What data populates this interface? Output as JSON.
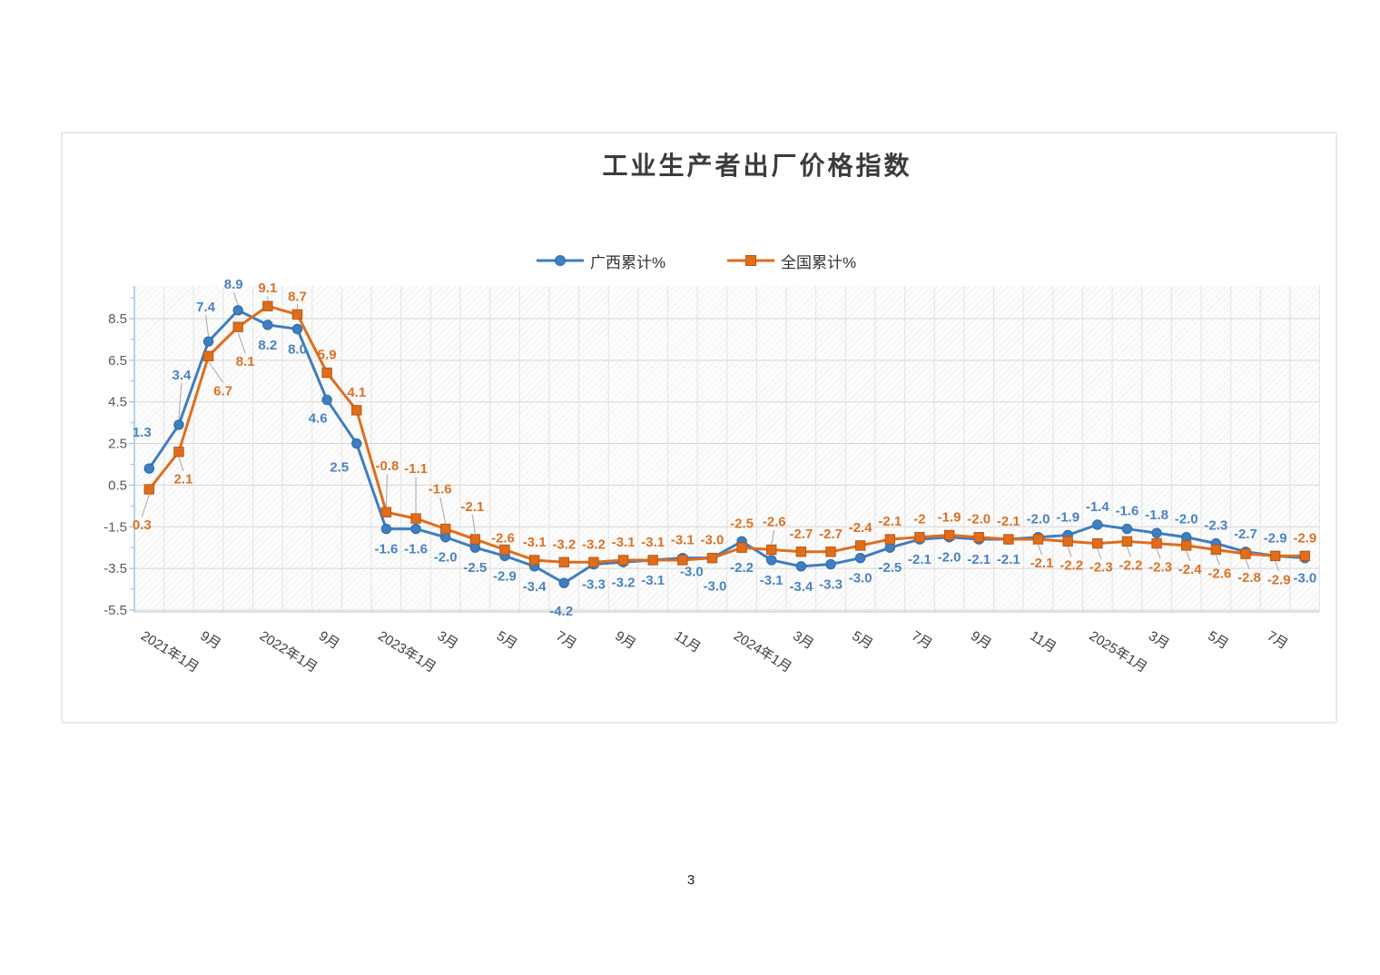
{
  "page": {
    "number": "3"
  },
  "chart": {
    "title": "工业生产者出厂价格指数",
    "background": "#ffffff",
    "border_color": "#e9e9e9",
    "axis_color": "#9dc3e6",
    "gridline_color": "#d7d7d7",
    "minor_gridline_color": "#e3e3e3",
    "leader_color": "#a6a6a6",
    "tick_label_color": "#595959"
  },
  "chart_data": {
    "type": "line",
    "title": "工业生产者出厂价格指数",
    "legend_position": "top",
    "grid": true,
    "n_points": 40,
    "x_tick_every": 2,
    "x_tick_labels": [
      "2021年1月",
      "9月",
      "2022年1月",
      "9月",
      "2023年1月",
      "3月",
      "5月",
      "7月",
      "9月",
      "11月",
      "2024年1月",
      "3月",
      "5月",
      "7月",
      "9月",
      "11月",
      "2025年1月",
      "3月",
      "5月",
      "7月"
    ],
    "y_ticks": [
      8.5,
      6.5,
      4.5,
      2.5,
      0.5,
      -1.5,
      -3.5,
      -5.5
    ],
    "ylim": [
      -5.5,
      10.1
    ],
    "series": [
      {
        "name": "广西累计%",
        "marker": "circle",
        "color": "#3E7EC1",
        "marker_edge": "#2F6AA8",
        "label_color": "#4A83BF",
        "values": [
          1.3,
          3.4,
          7.4,
          8.9,
          8.2,
          8.0,
          4.6,
          2.5,
          -1.6,
          -1.6,
          -2.0,
          -2.5,
          -2.9,
          -3.4,
          -4.2,
          -3.3,
          -3.2,
          -3.1,
          -3.0,
          -3.0,
          -2.2,
          -3.1,
          -3.4,
          -3.3,
          -3.0,
          -2.5,
          -2.1,
          -2.0,
          -2.1,
          -2.1,
          -2.0,
          -1.9,
          -1.4,
          -1.6,
          -1.8,
          -2.0,
          -2.3,
          -2.7,
          -2.9,
          -3.0
        ],
        "point_labels": [
          "1.3",
          "3.4",
          "7.4",
          "8.9",
          "8.2",
          "8.0",
          "4.6",
          "2.5",
          "-1.6",
          "-1.6",
          "-2.0",
          "-2.5",
          "-2.9",
          "-3.4",
          "-4.2",
          "-3.3",
          "-3.2",
          "-3.1",
          "-3.0",
          "-3.0",
          "-2.2",
          "-3.1",
          "-3.4",
          "-3.3",
          "-3.0",
          "-2.5",
          "-2.1",
          "-2.0",
          "-2.1",
          "-2.1",
          "-2.0",
          "-1.9",
          "-1.4",
          "-1.6",
          "-1.8",
          "-2.0",
          "-2.3",
          "-2.7",
          "-2.9",
          "-3.0"
        ],
        "label_side": "aaaabbbbbbbbbbbbbbbbbbbbbbbbbbaaaaaaaaab",
        "label_offsets": {
          "0": [
            -8,
            -40
          ],
          "1": [
            3,
            -55
          ],
          "2": [
            -3,
            -38
          ],
          "3": [
            -5,
            -29
          ],
          "6": [
            -10,
            20
          ],
          "7": [
            -19,
            26
          ],
          "14": [
            -3,
            31
          ],
          "18": [
            10,
            15
          ],
          "19": [
            3,
            31
          ]
        },
        "leader_indices": [
          1,
          2,
          3
        ]
      },
      {
        "name": "全国累计%",
        "marker": "square",
        "color": "#E06D1C",
        "marker_edge": "#B85715",
        "label_color": "#DB7227",
        "values": [
          0.3,
          2.1,
          6.7,
          8.1,
          9.1,
          8.7,
          5.9,
          4.1,
          -0.8,
          -1.1,
          -1.6,
          -2.1,
          -2.6,
          -3.1,
          -3.2,
          -3.2,
          -3.1,
          -3.1,
          -3.1,
          -3.0,
          -2.5,
          -2.6,
          -2.7,
          -2.7,
          -2.4,
          -2.1,
          -2.0,
          -1.9,
          -2.0,
          -2.1,
          -2.1,
          -2.2,
          -2.3,
          -2.2,
          -2.3,
          -2.4,
          -2.6,
          -2.8,
          -2.9,
          -2.9
        ],
        "point_labels": [
          "0.3",
          "2.1",
          "6.7",
          "8.1",
          "9.1",
          "8.7",
          "5.9",
          "4.1",
          "-0.8",
          "-1.1",
          "-1.6",
          "-2.1",
          "-2.6",
          "-3.1",
          "-3.2",
          "-3.2",
          "-3.1",
          "-3.1",
          "-3.1",
          "-3.0",
          "-2.5",
          "-2.6",
          "-2.7",
          "-2.7",
          "-2.4",
          "-2.1",
          "-2",
          "-1.9",
          "-2.0",
          "-2.1",
          "-2.1",
          "-2.2",
          "-2.3",
          "-2.2",
          "-2.3",
          "-2.4",
          "-2.6",
          "-2.8",
          "-2.9",
          "-2.9"
        ],
        "label_side": "bbbbaaaaaaaaaaaaaaaaaaaaaaaaaabbbbbbbbba",
        "label_offsets": {
          "0": [
            -8,
            39
          ],
          "1": [
            5,
            30
          ],
          "2": [
            16,
            38
          ],
          "3": [
            8,
            38
          ],
          "8": [
            1,
            -51
          ],
          "9": [
            0,
            -55
          ],
          "10": [
            -6,
            -44
          ],
          "11": [
            -3,
            -36
          ],
          "12": [
            -2,
            -13
          ],
          "21": [
            3,
            -31
          ]
        },
        "leader_indices": [
          0,
          1,
          2,
          3,
          4,
          5,
          8,
          9,
          10,
          11,
          21,
          30,
          31,
          32,
          33,
          34,
          35,
          36,
          37,
          38
        ]
      }
    ]
  }
}
